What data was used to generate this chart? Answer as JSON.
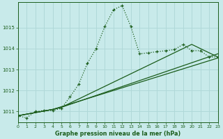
{
  "background_color": "#c8eaea",
  "grid_color": "#b0d8d8",
  "line_color": "#1a5c1a",
  "title": "Graphe pression niveau de la mer (hPa)",
  "xlim": [
    0,
    23
  ],
  "ylim": [
    1010.5,
    1016.2
  ],
  "yticks": [
    1011,
    1012,
    1013,
    1014,
    1015
  ],
  "xticks": [
    0,
    1,
    2,
    3,
    4,
    5,
    6,
    7,
    8,
    9,
    10,
    11,
    12,
    13,
    14,
    15,
    16,
    17,
    18,
    19,
    20,
    21,
    22,
    23
  ],
  "dotted_line": {
    "x": [
      0,
      1,
      2,
      3,
      4,
      5,
      6,
      7,
      8,
      9,
      10,
      11,
      12,
      13,
      14,
      15,
      16,
      17,
      18,
      19,
      20,
      21,
      22,
      23
    ],
    "y": [
      1010.8,
      1010.7,
      1011.0,
      1011.05,
      1011.05,
      1011.15,
      1011.7,
      1012.3,
      1013.3,
      1014.0,
      1015.05,
      1015.85,
      1016.05,
      1015.05,
      1013.75,
      1013.8,
      1013.85,
      1013.9,
      1013.95,
      1014.2,
      1013.9,
      1013.9,
      1013.6,
      1013.6
    ]
  },
  "solid_lines": [
    {
      "x": [
        0,
        4,
        23
      ],
      "y": [
        1010.8,
        1011.1,
        1013.55
      ]
    },
    {
      "x": [
        0,
        4,
        5,
        23
      ],
      "y": [
        1010.8,
        1011.1,
        1011.2,
        1013.75
      ]
    },
    {
      "x": [
        0,
        4,
        5,
        20,
        23
      ],
      "y": [
        1010.8,
        1011.1,
        1011.2,
        1014.2,
        1013.6
      ]
    }
  ]
}
